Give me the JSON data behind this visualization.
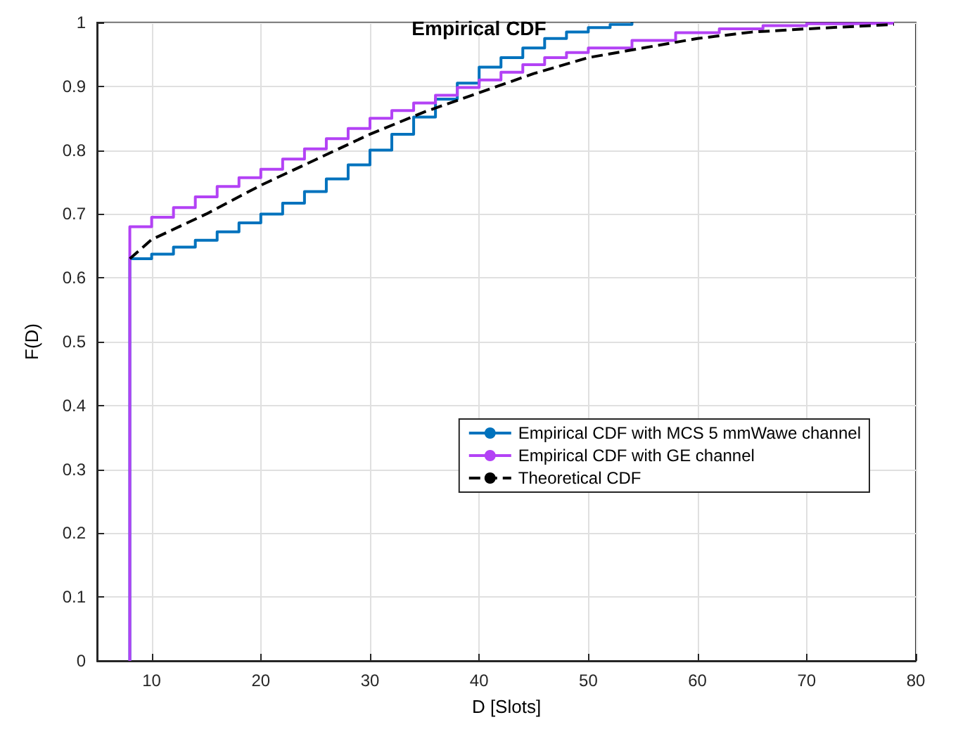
{
  "chart_data": {
    "type": "step",
    "title": "Empirical CDF",
    "xlabel": "D [Slots]",
    "ylabel": "F(D)",
    "xlim": [
      5,
      80
    ],
    "xticks": [
      10,
      20,
      30,
      40,
      50,
      60,
      70,
      80
    ],
    "ylim": [
      0,
      1
    ],
    "yticks": [
      0,
      0.1,
      0.2,
      0.3,
      0.4,
      0.5,
      0.6,
      0.7,
      0.8,
      0.9,
      1
    ],
    "grid": true,
    "legend": "right",
    "marker": "none",
    "series": [
      {
        "name": "Empirical CDF with MCS 5 mmWawe channel",
        "color": "#0072bd",
        "type": "step",
        "line_style": "solid",
        "x": [
          8,
          8,
          10,
          12,
          14,
          16,
          18,
          20,
          22,
          24,
          26,
          28,
          30,
          32,
          34,
          36,
          38,
          40,
          42,
          44,
          46,
          48,
          50,
          52,
          54
        ],
        "values": [
          0,
          0.63,
          0.637,
          0.648,
          0.659,
          0.672,
          0.686,
          0.7,
          0.717,
          0.735,
          0.755,
          0.777,
          0.8,
          0.825,
          0.852,
          0.88,
          0.905,
          0.93,
          0.945,
          0.96,
          0.975,
          0.985,
          0.992,
          0.997,
          1
        ]
      },
      {
        "name": "Empirical CDF with GE channel",
        "color": "#b342f5",
        "type": "step",
        "line_style": "solid",
        "x": [
          8,
          8,
          10,
          12,
          14,
          16,
          18,
          20,
          22,
          24,
          26,
          28,
          30,
          32,
          34,
          36,
          38,
          40,
          42,
          44,
          46,
          48,
          50,
          54,
          58,
          62,
          66,
          70,
          74,
          78
        ],
        "values": [
          0,
          0.68,
          0.695,
          0.71,
          0.727,
          0.743,
          0.757,
          0.77,
          0.786,
          0.802,
          0.818,
          0.834,
          0.85,
          0.862,
          0.874,
          0.886,
          0.898,
          0.91,
          0.922,
          0.934,
          0.945,
          0.953,
          0.96,
          0.972,
          0.984,
          0.99,
          0.995,
          0.998,
          0.999,
          1
        ]
      },
      {
        "name": "Theoretical CDF",
        "color": "#000000",
        "type": "line",
        "line_style": "dashed",
        "x": [
          8,
          10,
          15,
          20,
          25,
          30,
          35,
          40,
          45,
          50,
          55,
          60,
          65,
          70,
          78
        ],
        "values": [
          0.63,
          0.66,
          0.7,
          0.745,
          0.785,
          0.825,
          0.86,
          0.89,
          0.92,
          0.945,
          0.96,
          0.975,
          0.985,
          0.99,
          0.997
        ]
      }
    ]
  }
}
